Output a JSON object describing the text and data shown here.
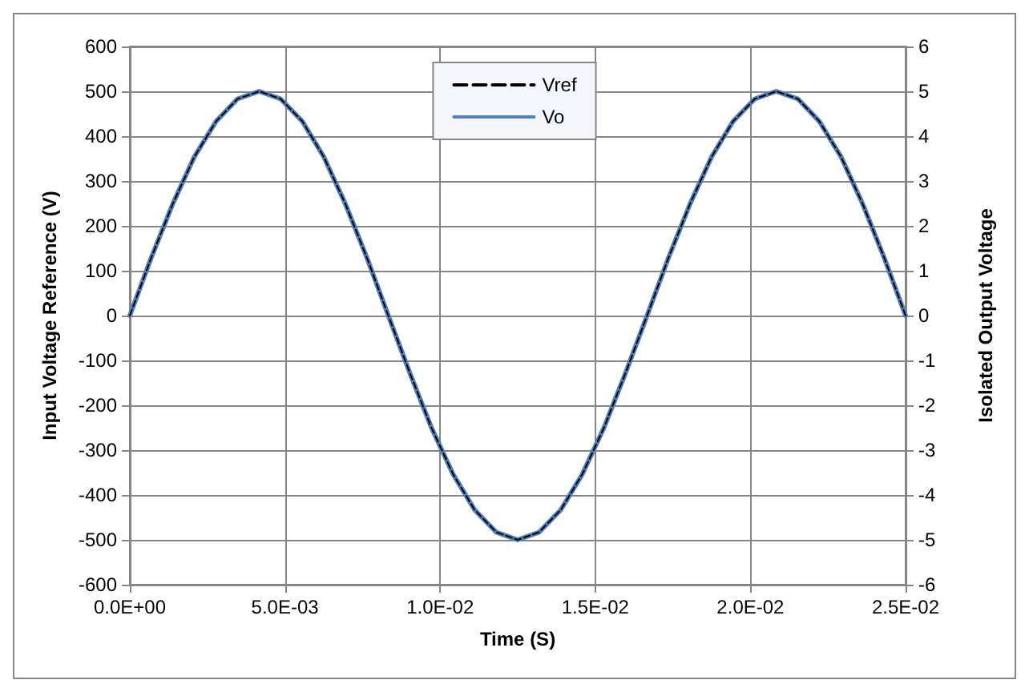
{
  "chart_data": {
    "type": "line",
    "xlabel": "Time (S)",
    "ylabel": "Input Voltage Reference (V)",
    "y2label": "Isolated Output Voltage",
    "x": [
      0,
      0.00069,
      0.00139,
      0.00208,
      0.00278,
      0.00347,
      0.00417,
      0.00486,
      0.00556,
      0.00625,
      0.00694,
      0.00764,
      0.00833,
      0.00903,
      0.00972,
      0.01042,
      0.01111,
      0.01181,
      0.0125,
      0.01319,
      0.01389,
      0.01458,
      0.01528,
      0.01597,
      0.01667,
      0.01736,
      0.01806,
      0.01875,
      0.01944,
      0.02014,
      0.02083,
      0.02153,
      0.02222,
      0.02292,
      0.02361,
      0.02431,
      0.025
    ],
    "series": [
      {
        "name": "Vref",
        "color": "#000000",
        "line_style": "dashed",
        "values": [
          0,
          129,
          250,
          354,
          433,
          483,
          500,
          483,
          433,
          354,
          250,
          129,
          0,
          -129,
          -250,
          -354,
          -433,
          -483,
          -500,
          -483,
          -433,
          -354,
          -250,
          -129,
          0,
          129,
          250,
          354,
          433,
          483,
          500,
          483,
          433,
          354,
          250,
          129,
          0
        ]
      },
      {
        "name": "Vo",
        "color": "#4f81bd",
        "line_style": "solid",
        "axis": "y2",
        "values": [
          0,
          1.29,
          2.5,
          3.54,
          4.33,
          4.83,
          5,
          4.83,
          4.33,
          3.54,
          2.5,
          1.29,
          0,
          -1.29,
          -2.5,
          -3.54,
          -4.33,
          -4.83,
          -5,
          -4.83,
          -4.33,
          -3.54,
          -2.5,
          -1.29,
          0,
          1.29,
          2.5,
          3.54,
          4.33,
          4.83,
          5,
          4.83,
          4.33,
          3.54,
          2.5,
          1.29,
          0
        ]
      }
    ],
    "xlim": [
      0,
      0.025
    ],
    "xticks": [
      {
        "value": 0,
        "label": "0.0E+00"
      },
      {
        "value": 0.005,
        "label": "5.0E-03"
      },
      {
        "value": 0.01,
        "label": "1.0E-02"
      },
      {
        "value": 0.015,
        "label": "1.5E-02"
      },
      {
        "value": 0.02,
        "label": "2.0E-02"
      },
      {
        "value": 0.025,
        "label": "2.5E-02"
      }
    ],
    "ylim": [
      -600,
      600
    ],
    "yticks": [
      -600,
      -500,
      -400,
      -300,
      -200,
      -100,
      0,
      100,
      200,
      300,
      400,
      500,
      600
    ],
    "y2lim": [
      -6,
      6
    ],
    "y2ticks": [
      -6,
      -5,
      -4,
      -3,
      -2,
      -1,
      0,
      1,
      2,
      3,
      4,
      5,
      6
    ],
    "grid": true,
    "legend": "top",
    "marker": "none"
  }
}
